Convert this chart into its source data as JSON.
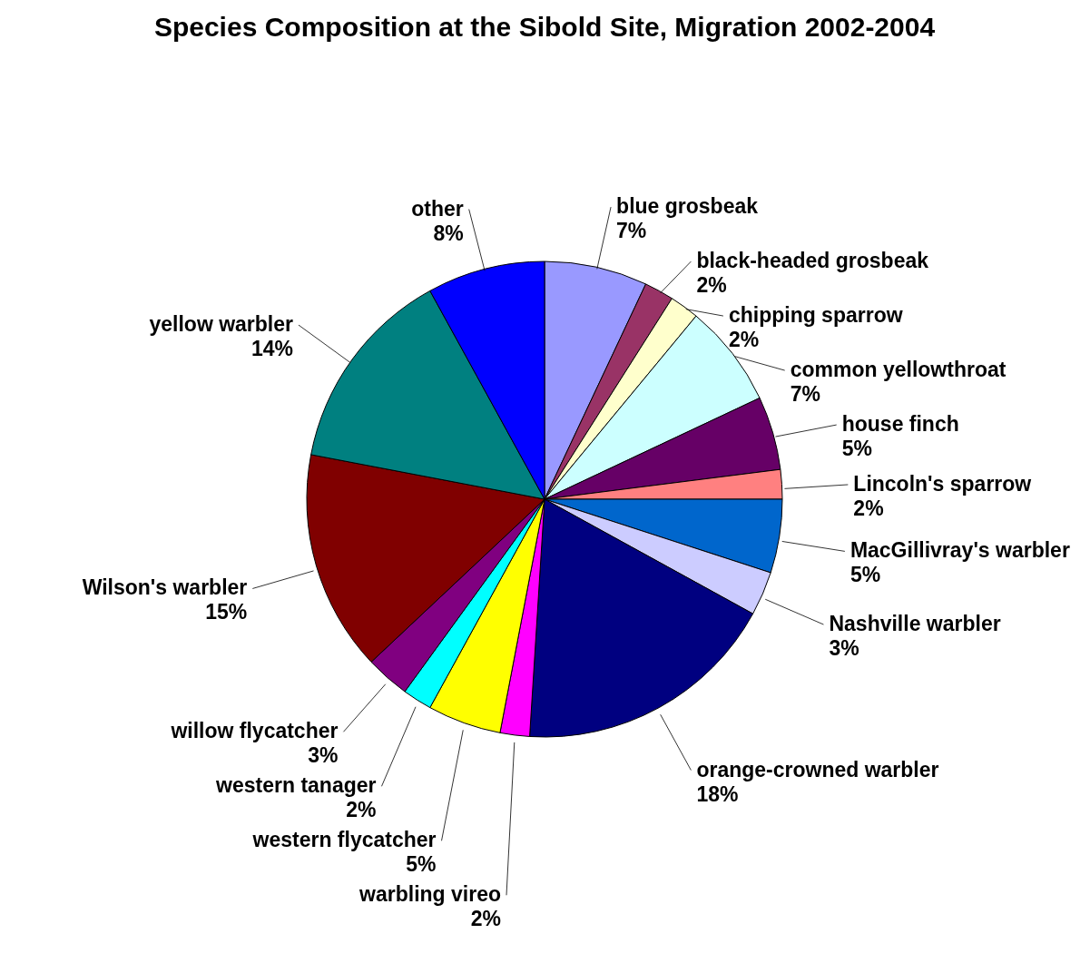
{
  "chart_data": {
    "type": "pie",
    "title": "Species Composition at the Sibold Site, Migration 2002-2004",
    "categories": [
      "blue grosbeak",
      "black-headed grosbeak",
      "chipping sparrow",
      "common yellowthroat",
      "house finch",
      "Lincoln's sparrow",
      "MacGillivray's warbler",
      "Nashville warbler",
      "orange-crowned warbler",
      "warbling vireo",
      "western flycatcher",
      "western tanager",
      "willow flycatcher",
      "Wilson's warbler",
      "yellow warbler",
      "other"
    ],
    "values": [
      7,
      2,
      2,
      7,
      5,
      2,
      5,
      3,
      18,
      2,
      5,
      2,
      3,
      15,
      14,
      8
    ],
    "value_labels": [
      "7%",
      "2%",
      "2%",
      "7%",
      "5%",
      "2%",
      "5%",
      "3%",
      "18%",
      "2%",
      "5%",
      "2%",
      "3%",
      "15%",
      "14%",
      "8%"
    ],
    "colors": [
      "#9999ff",
      "#993366",
      "#ffffcc",
      "#ccffff",
      "#660066",
      "#ff8080",
      "#0066cc",
      "#ccccff",
      "#000080",
      "#ff00ff",
      "#ffff00",
      "#00ffff",
      "#800080",
      "#800000",
      "#008080",
      "#0000ff"
    ],
    "legend": false
  }
}
